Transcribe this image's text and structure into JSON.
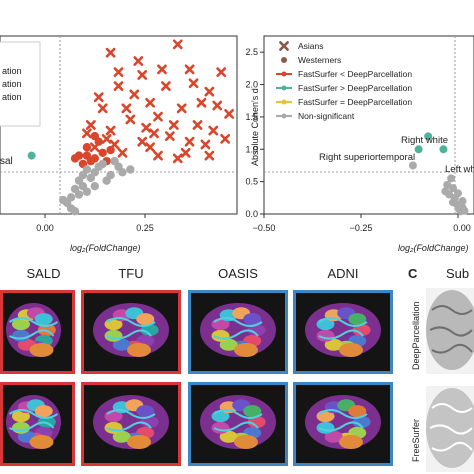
{
  "chart_data": [
    {
      "type": "scatter",
      "panel": "left-volcano",
      "xlabel": "log₂(FoldChange)",
      "ylabel": "",
      "x_ticks": [
        "0.00",
        "0.25"
      ],
      "xlim": [
        -0.18,
        0.42
      ],
      "ylim": [
        0,
        3.2
      ],
      "legend_fragments": [
        "ation",
        "ation",
        "ation"
      ],
      "annotations": [
        {
          "text": "sal",
          "x": -0.12,
          "y": 1.05
        }
      ],
      "series": [
        {
          "color": "#d9462b",
          "marker": "x",
          "points": [
            [
              0.1,
              2.9
            ],
            [
              0.18,
              2.5
            ],
            [
              0.27,
              3.05
            ],
            [
              0.3,
              2.6
            ],
            [
              0.35,
              2.2
            ],
            [
              0.38,
              2.55
            ],
            [
              0.2,
              2.0
            ],
            [
              0.12,
              2.3
            ],
            [
              0.08,
              1.9
            ],
            [
              0.15,
              1.7
            ],
            [
              0.22,
              1.75
            ],
            [
              0.28,
              1.9
            ],
            [
              0.32,
              1.6
            ],
            [
              0.25,
              1.4
            ],
            [
              0.18,
              1.3
            ],
            [
              0.1,
              1.5
            ],
            [
              0.05,
              1.6
            ],
            [
              0.13,
              1.1
            ],
            [
              0.2,
              1.2
            ],
            [
              0.3,
              1.3
            ],
            [
              0.36,
              1.5
            ],
            [
              0.4,
              1.8
            ],
            [
              0.24,
              2.3
            ],
            [
              0.16,
              2.15
            ],
            [
              0.07,
              2.1
            ],
            [
              0.33,
              2.0
            ],
            [
              0.26,
              1.6
            ],
            [
              0.19,
              1.55
            ],
            [
              0.11,
              1.25
            ],
            [
              0.29,
              1.1
            ],
            [
              0.34,
              1.25
            ],
            [
              0.21,
              1.45
            ],
            [
              0.14,
              1.9
            ],
            [
              0.09,
              1.35
            ],
            [
              0.23,
              2.6
            ],
            [
              0.17,
              2.75
            ],
            [
              0.31,
              2.35
            ],
            [
              0.37,
              1.95
            ],
            [
              0.06,
              1.2
            ],
            [
              0.27,
              1.0
            ],
            [
              0.39,
              1.35
            ],
            [
              0.12,
              2.55
            ],
            [
              0.04,
              1.45
            ],
            [
              0.22,
              1.05
            ],
            [
              0.35,
              1.05
            ]
          ]
        },
        {
          "color": "#d9462b",
          "marker": "o",
          "points": [
            [
              0.02,
              1.05
            ],
            [
              0.04,
              1.2
            ],
            [
              0.06,
              1.0
            ],
            [
              0.08,
              1.1
            ],
            [
              0.03,
              0.9
            ],
            [
              0.05,
              0.95
            ],
            [
              0.07,
              1.3
            ],
            [
              0.09,
              0.95
            ],
            [
              0.01,
              1.0
            ],
            [
              0.1,
              1.15
            ],
            [
              0.06,
              1.4
            ],
            [
              0.04,
              1.05
            ]
          ]
        },
        {
          "color": "#aaaaaa",
          "marker": "o",
          "points": [
            [
              0.0,
              0.3
            ],
            [
              0.01,
              0.45
            ],
            [
              0.02,
              0.6
            ],
            [
              0.03,
              0.7
            ],
            [
              0.04,
              0.8
            ],
            [
              0.05,
              0.65
            ],
            [
              0.06,
              0.75
            ],
            [
              -0.01,
              0.2
            ],
            [
              0.0,
              0.1
            ],
            [
              0.02,
              0.35
            ],
            [
              0.03,
              0.5
            ],
            [
              0.07,
              0.85
            ],
            [
              0.08,
              0.9
            ],
            [
              0.1,
              0.7
            ],
            [
              0.12,
              0.85
            ],
            [
              0.09,
              0.6
            ],
            [
              0.01,
              0.05
            ],
            [
              0.04,
              0.4
            ],
            [
              -0.02,
              0.25
            ],
            [
              0.15,
              0.8
            ],
            [
              0.11,
              0.95
            ],
            [
              0.13,
              0.75
            ],
            [
              0.06,
              0.5
            ]
          ]
        },
        {
          "color": "#4fb39a",
          "marker": "o",
          "points": [
            [
              -0.1,
              1.05
            ]
          ]
        }
      ]
    },
    {
      "type": "scatter",
      "panel": "right-cohens-d",
      "xlabel": "log₂(FoldChange)",
      "ylabel": "Absolute Cohen's d",
      "x_ticks": [
        "−0.50",
        "−0.25",
        "0.00"
      ],
      "y_ticks": [
        "0.0",
        "0.5",
        "1.0",
        "1.5",
        "2.0",
        "2.5"
      ],
      "xlim": [
        -0.5,
        0.05
      ],
      "ylim": [
        0,
        2.75
      ],
      "legend": [
        {
          "label": "Asians",
          "color": "#8a5a4a",
          "marker": "x"
        },
        {
          "label": "Westerners",
          "color": "#8a5a4a",
          "marker": "o"
        },
        {
          "label": "FastSurfer < DeepParcellation",
          "color": "#d9462b",
          "marker": "line"
        },
        {
          "label": "FastSurfer > DeepParcellation",
          "color": "#4fb39a",
          "marker": "line"
        },
        {
          "label": "FastSurfer = DeepParcellation",
          "color": "#e8c23a",
          "marker": "line"
        },
        {
          "label": "Non-significant",
          "color": "#aaaaaa",
          "marker": "line"
        }
      ],
      "annotations": [
        {
          "text": "Right superiortemporal",
          "x": -0.22,
          "y": 0.98
        },
        {
          "text": "Right white",
          "x": -0.075,
          "y": 1.32
        },
        {
          "text": "Left whi",
          "x": -0.02,
          "y": 0.88
        }
      ],
      "series": [
        {
          "color": "#4fb39a",
          "marker": "o",
          "points": [
            [
              -0.07,
              1.2
            ],
            [
              -0.095,
              1.0
            ],
            [
              -0.03,
              1.0
            ]
          ]
        },
        {
          "color": "#aaaaaa",
          "marker": "o",
          "points": [
            [
              -0.01,
              0.55
            ],
            [
              -0.005,
              0.4
            ],
            [
              0.0,
              0.25
            ],
            [
              0.005,
              0.15
            ],
            [
              0.01,
              0.08
            ],
            [
              0.015,
              0.04
            ],
            [
              0.02,
              0.1
            ],
            [
              0.025,
              0.05
            ],
            [
              -0.015,
              0.3
            ],
            [
              -0.02,
              0.45
            ],
            [
              -0.025,
              0.35
            ],
            [
              -0.11,
              0.75
            ],
            [
              0.008,
              0.32
            ],
            [
              0.02,
              0.2
            ],
            [
              -0.005,
              0.18
            ]
          ]
        }
      ]
    }
  ],
  "bottom": {
    "row_labels": [
      "DeepParcellation",
      "FreeSurfer"
    ],
    "datasets": [
      {
        "name": "SALD",
        "border": "#d9363a"
      },
      {
        "name": "TFU",
        "border": "#d9363a"
      },
      {
        "name": "OASIS",
        "border": "#3a87c4"
      },
      {
        "name": "ADNI",
        "border": "#3a87c4"
      }
    ],
    "panel_c_letter": "C",
    "panel_c_title": "Sub",
    "panel_c_rows": [
      "DeepParcellation",
      "FreeSurfer"
    ]
  }
}
